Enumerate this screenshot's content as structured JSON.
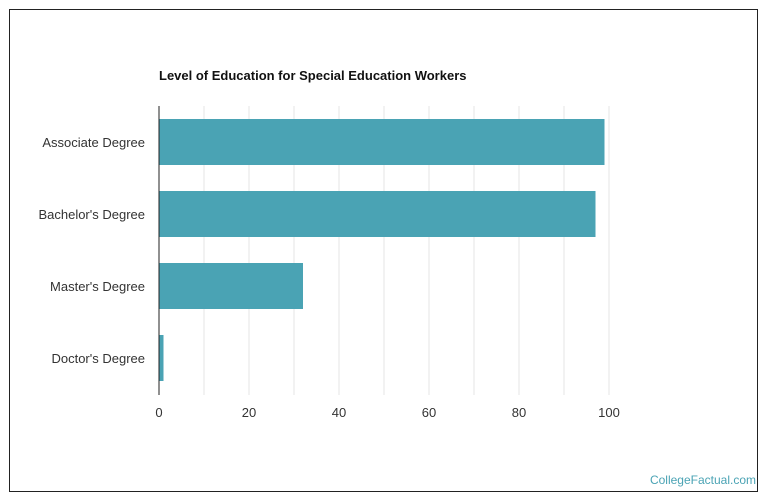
{
  "brand": {
    "text": "CollegeFactual.com"
  },
  "colors": {
    "bar": "#4aa3b4",
    "grid": "#e6e6e6",
    "axis": "#222222",
    "text": "#333333",
    "brand": "#4aa3b4"
  },
  "chart_data": {
    "type": "bar",
    "orientation": "horizontal",
    "title": "Level of Education for Special Education Workers",
    "xlabel": "",
    "ylabel": "",
    "categories": [
      "Associate Degree",
      "Bachelor's Degree",
      "Master's Degree",
      "Doctor's Degree"
    ],
    "values": [
      99,
      97,
      32,
      1
    ],
    "xlim": [
      0,
      100
    ],
    "xticks": [
      0,
      20,
      40,
      60,
      80,
      100
    ],
    "grid": true,
    "legend": "none"
  }
}
